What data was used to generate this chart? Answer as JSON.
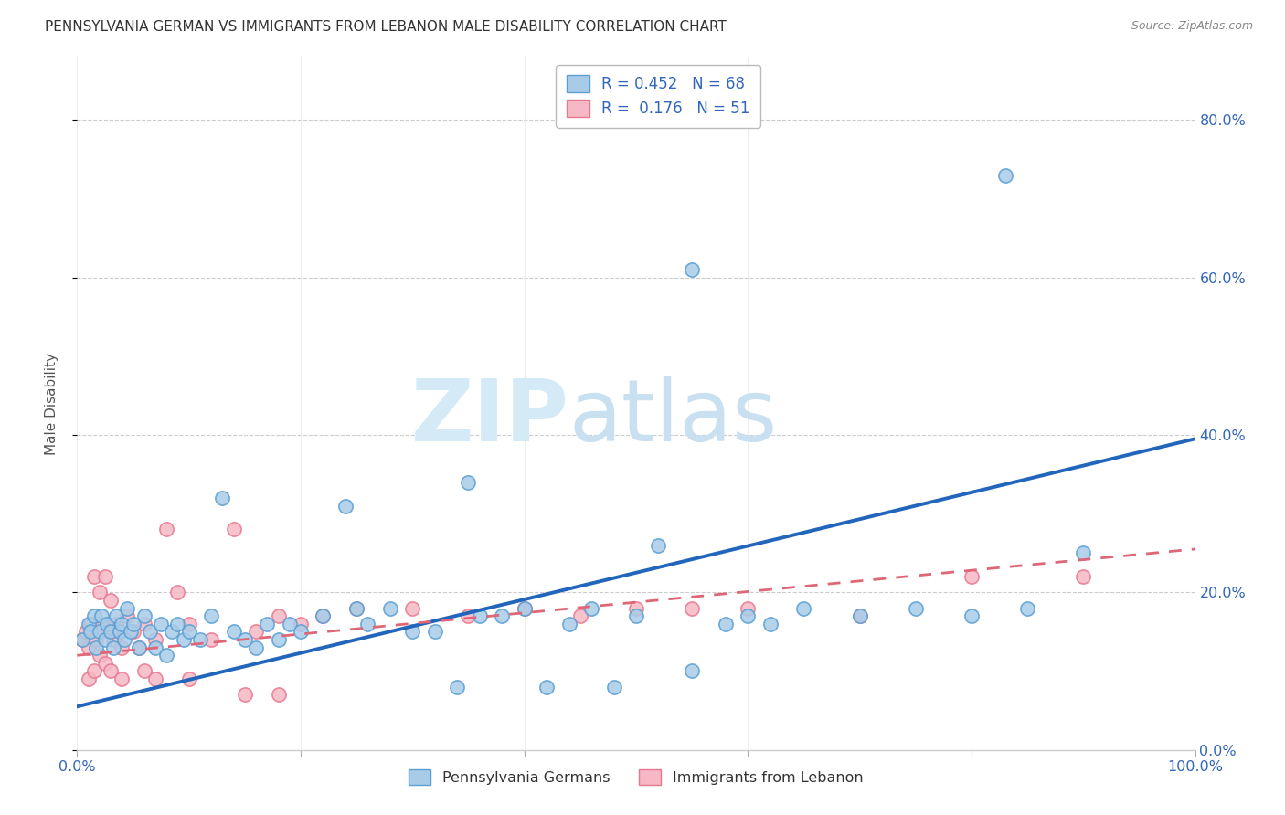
{
  "title": "PENNSYLVANIA GERMAN VS IMMIGRANTS FROM LEBANON MALE DISABILITY CORRELATION CHART",
  "source": "Source: ZipAtlas.com",
  "ylabel": "Male Disability",
  "xlim": [
    0,
    1.0
  ],
  "ylim": [
    0,
    0.88
  ],
  "yticks": [
    0.0,
    0.2,
    0.4,
    0.6,
    0.8
  ],
  "ytick_labels": [
    "0.0%",
    "20.0%",
    "40.0%",
    "60.0%",
    "80.0%"
  ],
  "xticks": [
    0.0,
    0.2,
    0.4,
    0.6,
    0.8,
    1.0
  ],
  "xtick_labels": [
    "0.0%",
    "",
    "",
    "",
    "",
    "100.0%"
  ],
  "blue_R": 0.452,
  "blue_N": 68,
  "pink_R": 0.176,
  "pink_N": 51,
  "blue_scatter_color": "#a8cce8",
  "pink_scatter_color": "#f5b8c4",
  "blue_edge_color": "#5a9fd4",
  "pink_edge_color": "#e87890",
  "blue_line_color": "#2266bb",
  "pink_line_color": "#dd6677",
  "watermark_color": "#d5eaf7",
  "blue_x": [
    0.005,
    0.01,
    0.012,
    0.015,
    0.017,
    0.02,
    0.022,
    0.025,
    0.027,
    0.03,
    0.032,
    0.035,
    0.038,
    0.04,
    0.042,
    0.045,
    0.048,
    0.05,
    0.055,
    0.06,
    0.065,
    0.07,
    0.075,
    0.08,
    0.085,
    0.09,
    0.095,
    0.1,
    0.11,
    0.12,
    0.13,
    0.14,
    0.15,
    0.16,
    0.17,
    0.18,
    0.19,
    0.2,
    0.22,
    0.24,
    0.25,
    0.26,
    0.28,
    0.3,
    0.32,
    0.34,
    0.35,
    0.36,
    0.38,
    0.4,
    0.42,
    0.44,
    0.46,
    0.48,
    0.5,
    0.52,
    0.55,
    0.58,
    0.6,
    0.62,
    0.65,
    0.7,
    0.75,
    0.8,
    0.85,
    0.9,
    0.55,
    0.83
  ],
  "blue_y": [
    0.14,
    0.16,
    0.15,
    0.17,
    0.13,
    0.15,
    0.17,
    0.14,
    0.16,
    0.15,
    0.13,
    0.17,
    0.15,
    0.16,
    0.14,
    0.18,
    0.15,
    0.16,
    0.13,
    0.17,
    0.15,
    0.13,
    0.16,
    0.12,
    0.15,
    0.16,
    0.14,
    0.15,
    0.14,
    0.17,
    0.32,
    0.15,
    0.14,
    0.13,
    0.16,
    0.14,
    0.16,
    0.15,
    0.17,
    0.31,
    0.18,
    0.16,
    0.18,
    0.15,
    0.15,
    0.08,
    0.34,
    0.17,
    0.17,
    0.18,
    0.08,
    0.16,
    0.18,
    0.08,
    0.17,
    0.26,
    0.1,
    0.16,
    0.17,
    0.16,
    0.18,
    0.17,
    0.18,
    0.17,
    0.18,
    0.25,
    0.61,
    0.73
  ],
  "pink_x": [
    0.005,
    0.008,
    0.01,
    0.012,
    0.015,
    0.017,
    0.02,
    0.022,
    0.025,
    0.028,
    0.03,
    0.032,
    0.035,
    0.038,
    0.04,
    0.045,
    0.05,
    0.055,
    0.06,
    0.07,
    0.08,
    0.09,
    0.1,
    0.12,
    0.14,
    0.16,
    0.18,
    0.2,
    0.22,
    0.25,
    0.3,
    0.35,
    0.4,
    0.45,
    0.5,
    0.55,
    0.6,
    0.7,
    0.8,
    0.9,
    0.01,
    0.015,
    0.02,
    0.025,
    0.03,
    0.04,
    0.06,
    0.07,
    0.1,
    0.15,
    0.18
  ],
  "pink_y": [
    0.14,
    0.15,
    0.13,
    0.16,
    0.22,
    0.14,
    0.2,
    0.16,
    0.22,
    0.15,
    0.19,
    0.14,
    0.16,
    0.15,
    0.13,
    0.17,
    0.15,
    0.13,
    0.16,
    0.14,
    0.28,
    0.2,
    0.16,
    0.14,
    0.28,
    0.15,
    0.17,
    0.16,
    0.17,
    0.18,
    0.18,
    0.17,
    0.18,
    0.17,
    0.18,
    0.18,
    0.18,
    0.17,
    0.22,
    0.22,
    0.09,
    0.1,
    0.12,
    0.11,
    0.1,
    0.09,
    0.1,
    0.09,
    0.09,
    0.07,
    0.07
  ],
  "blue_line_start_x": 0.0,
  "blue_line_start_y": 0.055,
  "blue_line_end_x": 1.0,
  "blue_line_end_y": 0.395,
  "pink_line_start_x": 0.0,
  "pink_line_start_y": 0.12,
  "pink_line_end_x": 1.0,
  "pink_line_end_y": 0.255
}
